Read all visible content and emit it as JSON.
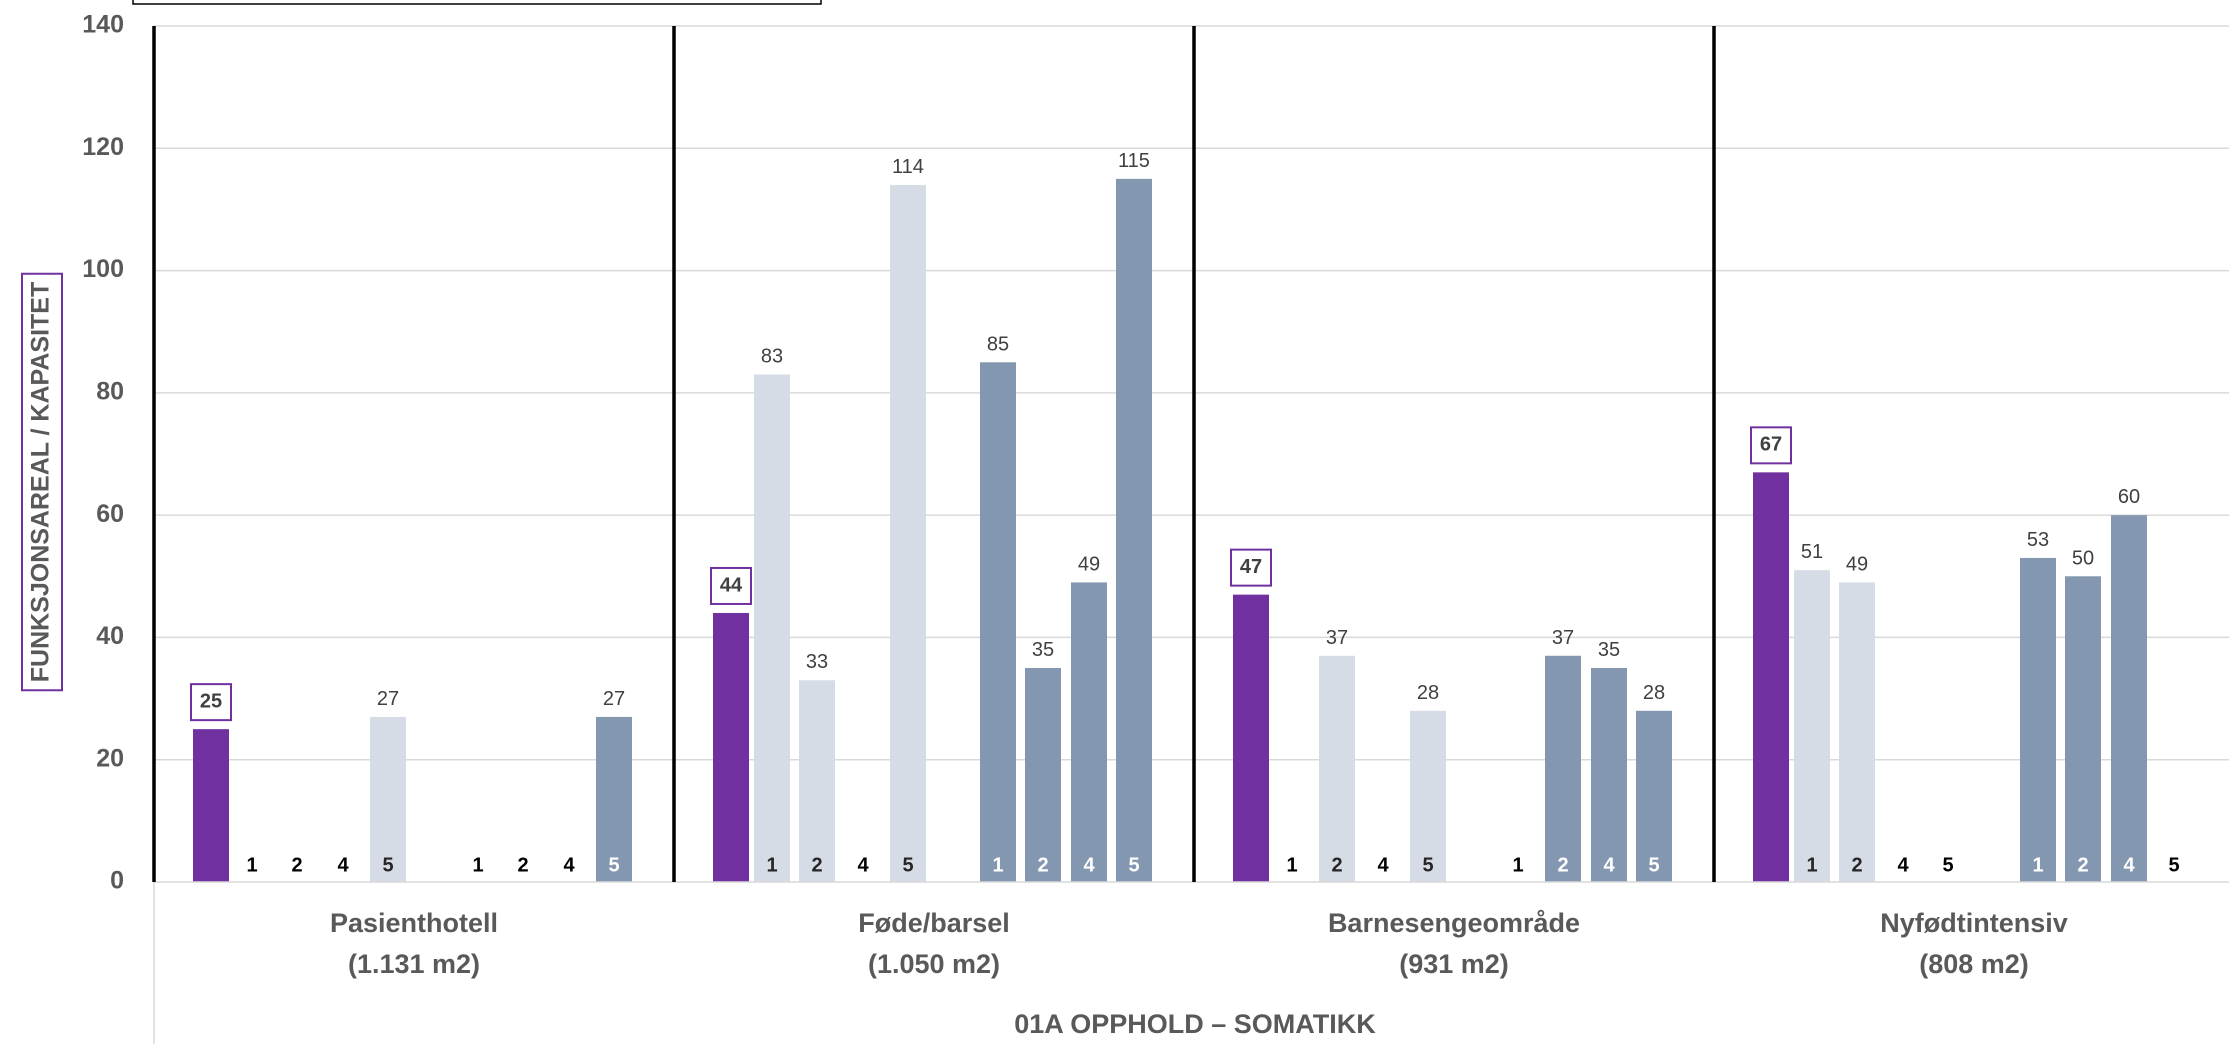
{
  "chart_data": {
    "type": "bar",
    "title": "",
    "ylabel": "FUNKSJONSAREAL / KAPASITET",
    "xlabel": "01A OPPHOLD – SOMATIKK",
    "ylim": [
      0,
      140
    ],
    "yticks": [
      0,
      20,
      40,
      60,
      80,
      100,
      120,
      140
    ],
    "grid": true,
    "colors": {
      "current": "#7030A0",
      "light": "#D6DCE5",
      "dark": "#8497B0",
      "grid": "#D9D9D9",
      "axis": "#000000"
    },
    "groups": [
      {
        "name": "Pasienthotell",
        "area": "(1.131 m2)",
        "current": 25,
        "light": [
          {
            "label": "1",
            "value": null
          },
          {
            "label": "2",
            "value": null
          },
          {
            "label": "4",
            "value": null
          },
          {
            "label": "5",
            "value": 27
          }
        ],
        "dark": [
          {
            "label": "1",
            "value": null
          },
          {
            "label": "2",
            "value": null
          },
          {
            "label": "4",
            "value": null
          },
          {
            "label": "5",
            "value": 27
          }
        ]
      },
      {
        "name": "Føde/barsel",
        "area": "(1.050 m2)",
        "current": 44,
        "light": [
          {
            "label": "1",
            "value": 83
          },
          {
            "label": "2",
            "value": 33
          },
          {
            "label": "4",
            "value": null
          },
          {
            "label": "5",
            "value": 114
          }
        ],
        "dark": [
          {
            "label": "1",
            "value": 85
          },
          {
            "label": "2",
            "value": 35
          },
          {
            "label": "4",
            "value": 49
          },
          {
            "label": "5",
            "value": 115
          }
        ]
      },
      {
        "name": "Barnesengeområde",
        "area": "(931 m2)",
        "current": 47,
        "light": [
          {
            "label": "1",
            "value": null
          },
          {
            "label": "2",
            "value": 37
          },
          {
            "label": "4",
            "value": null
          },
          {
            "label": "5",
            "value": 28
          }
        ],
        "dark": [
          {
            "label": "1",
            "value": null
          },
          {
            "label": "2",
            "value": 37
          },
          {
            "label": "4",
            "value": 35
          },
          {
            "label": "5",
            "value": 28
          }
        ]
      },
      {
        "name": "Nyfødtintensiv",
        "area": "(808 m2)",
        "current": 67,
        "light": [
          {
            "label": "1",
            "value": 51
          },
          {
            "label": "2",
            "value": 49
          },
          {
            "label": "4",
            "value": null
          },
          {
            "label": "5",
            "value": null
          }
        ],
        "dark": [
          {
            "label": "1",
            "value": 53
          },
          {
            "label": "2",
            "value": 50
          },
          {
            "label": "4",
            "value": 60
          },
          {
            "label": "5",
            "value": null
          }
        ]
      }
    ]
  }
}
